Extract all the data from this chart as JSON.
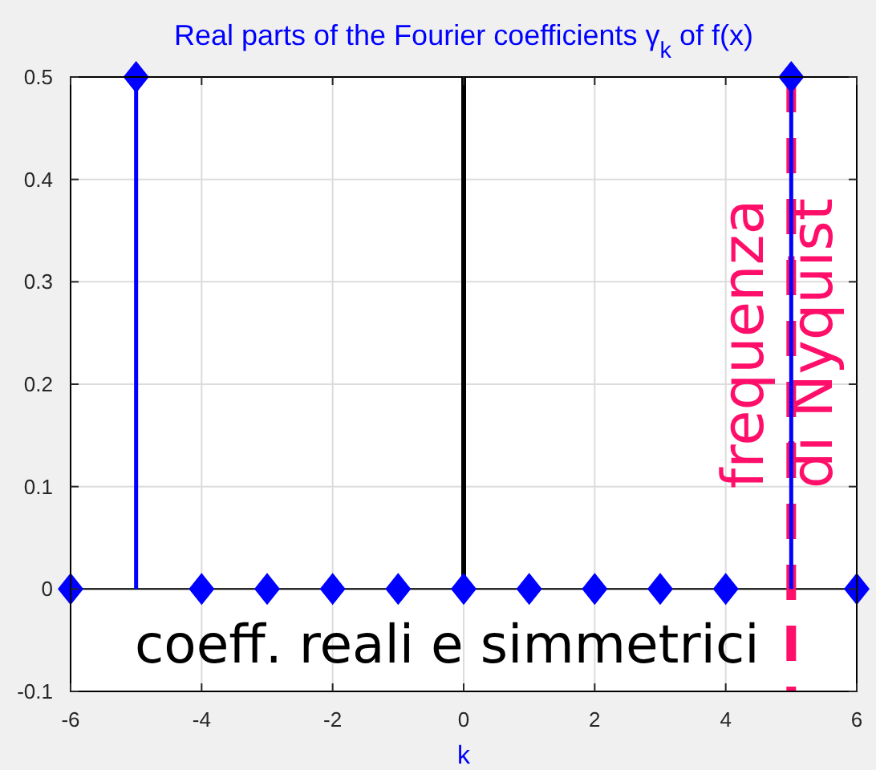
{
  "chart_data": {
    "type": "lollipop",
    "title": "Real parts of the Fourier coefficients γ$_{k}$ of f(x)",
    "xlabel": "k",
    "x": [
      -6,
      -5,
      -4,
      -3,
      -2,
      -1,
      0,
      1,
      2,
      3,
      4,
      5,
      6
    ],
    "series": [
      {
        "color": "#0000ff",
        "values": [
          0,
          0.5,
          0,
          0,
          0,
          0,
          0,
          0,
          0,
          0,
          0,
          0.5,
          0
        ]
      },
      {
        "type": "line",
        "color": "#000000",
        "x": [
          0,
          0
        ],
        "values": [
          0,
          0.5
        ],
        "marker": "none"
      }
    ],
    "xlim": [
      -6,
      6
    ],
    "ylim": [
      -0.1,
      0.5
    ],
    "xticks": [
      -6,
      -4,
      -2,
      0,
      2,
      4,
      6
    ],
    "yticks": [
      -0.1,
      0,
      0.1,
      0.2,
      0.3,
      0.4,
      0.5
    ],
    "grid": true,
    "marker": "diamond",
    "ref_lines": [
      {
        "axis": "y",
        "value": 0,
        "color": "#000000"
      },
      {
        "axis": "x",
        "value": 5,
        "label": "frequenza\ndi Nyquist",
        "color": "#ff0f6a",
        "line_style": "dashed"
      }
    ],
    "annotations": [
      "coeff. reali e simmetrici"
    ]
  }
}
